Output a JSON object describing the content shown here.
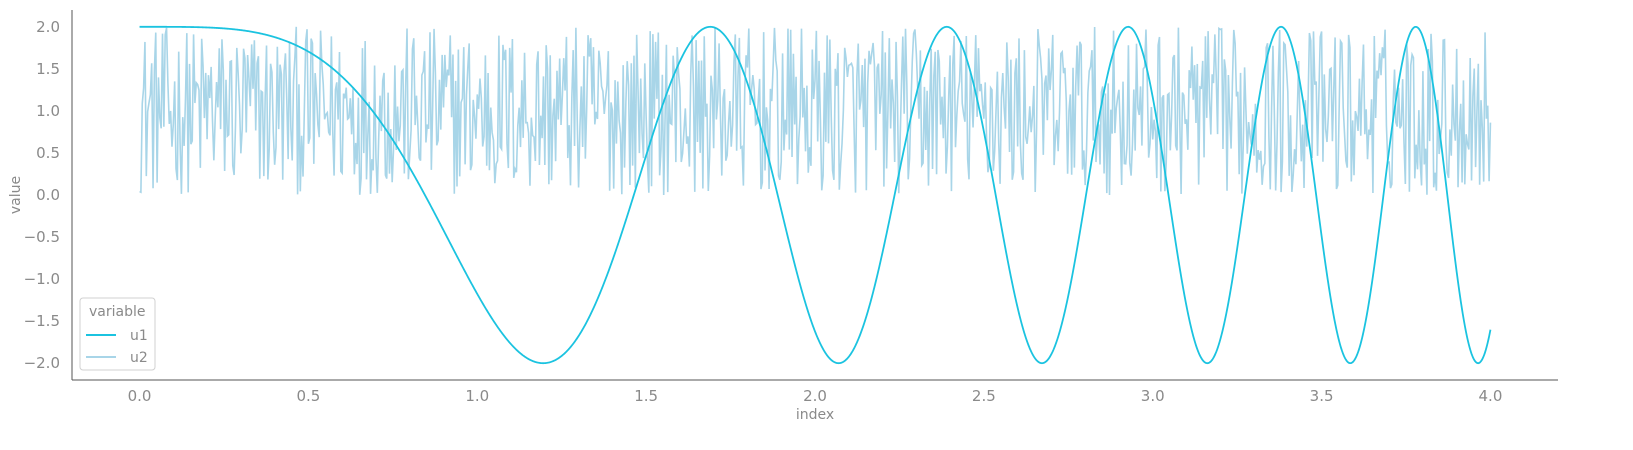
{
  "chart_data": {
    "type": "line",
    "xlabel": "index",
    "ylabel": "value",
    "xlim": [
      -0.2,
      4.2
    ],
    "ylim": [
      -2.2,
      2.2
    ],
    "x_ticks": [
      0.0,
      0.5,
      1.0,
      1.5,
      2.0,
      2.5,
      3.0,
      3.5,
      4.0
    ],
    "x_tick_labels": [
      "0.0",
      "0.5",
      "1.0",
      "1.5",
      "2.0",
      "2.5",
      "3.0",
      "3.5",
      "4.0"
    ],
    "y_ticks": [
      2.0,
      1.5,
      1.0,
      0.5,
      0.0,
      -0.5,
      -1.0,
      -1.5,
      -2.0
    ],
    "y_tick_labels": [
      "2.0",
      "1.5",
      "1.0",
      "0.5",
      "0.0",
      "−0.5",
      "−1.0",
      "−1.5",
      "−2.0"
    ],
    "grid": false,
    "legend": {
      "title": "variable",
      "placement": "lower-left"
    },
    "series": [
      {
        "name": "u1",
        "color": "#1bc3e0",
        "description": "2*cos(2.2*x^2) for x from 0 to 4, about 1000 points",
        "x_range": [
          0.0,
          4.0
        ],
        "values_sample": [
          2.0,
          1.9,
          1.26,
          -0.23,
          -1.74,
          -1.66,
          0.27,
          1.97,
          -1.65,
          -1.95
        ]
      },
      {
        "name": "u2",
        "color": "#a8d5e8",
        "description": "uniform random noise between 0.0 and 2.0 for x from 0 to 4, about 1000 points",
        "x_range": [
          0.0,
          4.0
        ],
        "y_range": [
          0.0,
          2.0
        ]
      }
    ]
  }
}
